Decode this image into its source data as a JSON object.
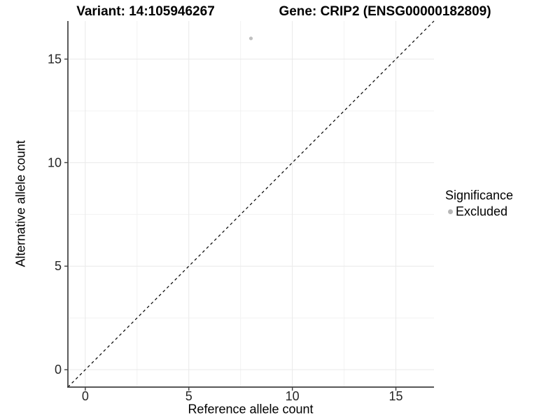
{
  "chart_data": {
    "type": "scatter",
    "title_left": "Variant: 14:105946267",
    "title_right": "Gene: CRIP2 (ENSG00000182809)",
    "xlabel": "Reference allele count",
    "ylabel": "Alternative allele count",
    "xlim": [
      -0.84,
      16.84
    ],
    "ylim": [
      -0.84,
      16.84
    ],
    "x_ticks": [
      0,
      5,
      10,
      15
    ],
    "x_minor_ticks": [
      2.5,
      7.5,
      12.5
    ],
    "y_ticks": [
      0,
      5,
      10,
      15
    ],
    "y_minor_ticks": [
      2.5,
      7.5,
      12.5
    ],
    "grid": "major and minor gridlines, very light gray on white panel",
    "reference_line": {
      "equation": "y = x",
      "style": "dashed",
      "color": "#000000"
    },
    "series": [
      {
        "name": "Excluded",
        "color": "#c0c0c0",
        "points": [
          {
            "x": 8,
            "y": 16
          }
        ]
      }
    ],
    "legend": {
      "title": "Significance",
      "position": "right",
      "entries": [
        {
          "label": "Excluded",
          "color": "#b7b7b7",
          "marker": "circle"
        }
      ]
    }
  },
  "colors": {
    "background": "#ffffff",
    "axis_line": "#404040",
    "tick_mark": "#404040",
    "tick_text": "#262626",
    "title_text": "#000000",
    "grid_major": "#e9e9e9",
    "grid_minor": "#f2f2f2",
    "point": "#c0c0c0",
    "legend_point": "#b7b7b7",
    "dashed_line": "#000000"
  }
}
